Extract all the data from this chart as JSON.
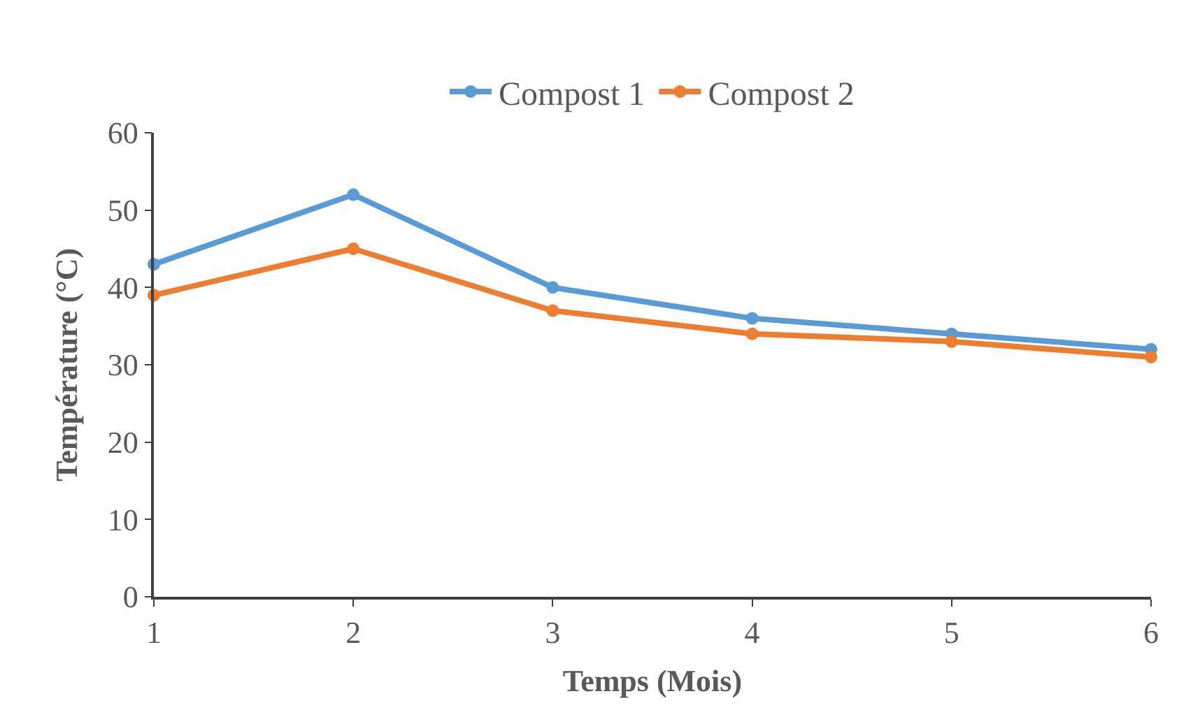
{
  "chart_data": {
    "type": "line",
    "xlabel": "Temps (Mois)",
    "ylabel": "Température (°C)",
    "x": [
      1,
      2,
      3,
      4,
      5,
      6
    ],
    "series": [
      {
        "name": "Compost 1",
        "color": "#5b9bd5",
        "values": [
          43,
          52,
          40,
          36,
          34,
          32
        ]
      },
      {
        "name": "Compost 2",
        "color": "#ed7d31",
        "values": [
          39,
          45,
          37,
          34,
          33,
          31
        ]
      }
    ],
    "xlim": [
      1,
      6
    ],
    "xticks": [
      1,
      2,
      3,
      4,
      5,
      6
    ],
    "ylim": [
      0,
      60
    ],
    "yticks": [
      0,
      10,
      20,
      30,
      40,
      50,
      60
    ],
    "legend": "top",
    "marker": "circle",
    "line_style": "solid"
  }
}
